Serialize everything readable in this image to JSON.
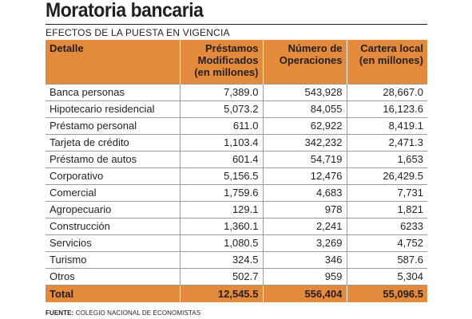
{
  "title": "Moratoria bancaria",
  "subtitle": "EFECTOS DE LA PUESTA EN VIGENCIA",
  "table": {
    "headers": [
      "Detalle",
      "Préstamos Modificados (en millones)",
      "Número de Operaciones",
      "Cartera local (en millones)"
    ],
    "header_lines": [
      [
        "Detalle"
      ],
      [
        "Préstamos",
        "Modificados",
        "(en millones)"
      ],
      [
        "Número de",
        "Operaciones"
      ],
      [
        "Cartera local",
        "(en millones)"
      ]
    ],
    "rows": [
      [
        "Banca personas",
        "7,389.0",
        "543,928",
        "28,667.0"
      ],
      [
        "Hipotecario residencial",
        "5,073.2",
        "84,055",
        "16,123.6"
      ],
      [
        "Préstamo personal",
        "611.0",
        "62,922",
        "8,419.1"
      ],
      [
        "Tarjeta de crédito",
        "1,103.4",
        "342,232",
        "2,471.3"
      ],
      [
        "Préstamo de autos",
        "601.4",
        "54,719",
        "1,653"
      ],
      [
        "Corporativo",
        "5,156.5",
        "12,476",
        "26,429.5"
      ],
      [
        "Comercial",
        "1,759.6",
        "4,683",
        "7,731"
      ],
      [
        "Agropecuario",
        "129.1",
        "978",
        "1,821"
      ],
      [
        "Construcción",
        "1,360.1",
        "2,241",
        "6233"
      ],
      [
        "Servicios",
        "1,080.5",
        "3,269",
        "4,752"
      ],
      [
        "Turismo",
        "324.5",
        "346",
        "587.6"
      ],
      [
        "Otros",
        "502.7",
        "959",
        "5,304"
      ]
    ],
    "total": [
      "Total",
      "12,545.5",
      "556,404",
      "55,096.5"
    ]
  },
  "source": {
    "label": "FUENTE:",
    "text": "COLEGIO NACIONAL DE ECONOMISTAS"
  },
  "colors": {
    "header_bg": "#e48a3c",
    "text": "#231f20",
    "row_border": "#9a9a9a"
  }
}
